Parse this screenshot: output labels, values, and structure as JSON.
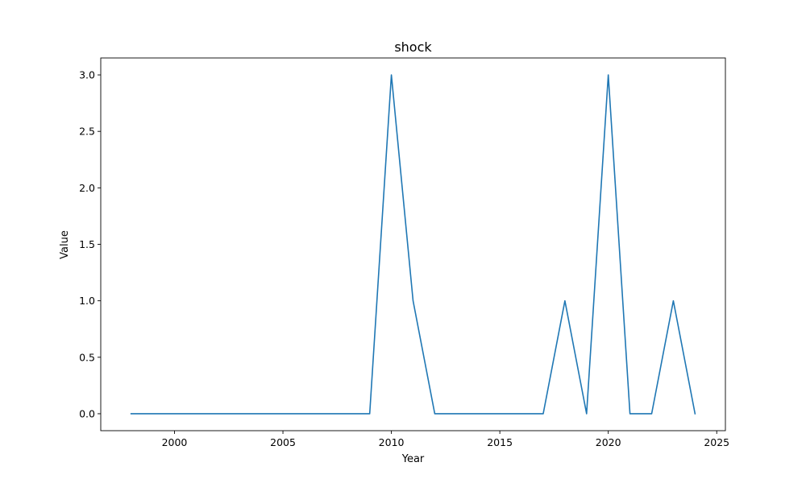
{
  "chart_data": {
    "type": "line",
    "title": "shock",
    "xlabel": "Year",
    "ylabel": "Value",
    "xlim": [
      1996.6,
      2025.4
    ],
    "ylim": [
      -0.15,
      3.15
    ],
    "xticks": [
      2000,
      2005,
      2010,
      2015,
      2020,
      2025
    ],
    "yticks": [
      0.0,
      0.5,
      1.0,
      1.5,
      2.0,
      2.5,
      3.0
    ],
    "xtick_labels": [
      "2000",
      "2005",
      "2010",
      "2015",
      "2020",
      "2025"
    ],
    "ytick_labels": [
      "0.0",
      "0.5",
      "1.0",
      "1.5",
      "2.0",
      "2.5",
      "3.0"
    ],
    "grid": false,
    "series": [
      {
        "color": "#1f77b4",
        "x": [
          1998,
          1999,
          2000,
          2001,
          2002,
          2003,
          2004,
          2005,
          2006,
          2007,
          2008,
          2009,
          2010,
          2011,
          2012,
          2013,
          2014,
          2015,
          2016,
          2017,
          2018,
          2019,
          2020,
          2021,
          2022,
          2023,
          2024
        ],
        "y": [
          0,
          0,
          0,
          0,
          0,
          0,
          0,
          0,
          0,
          0,
          0,
          0,
          3,
          1,
          0,
          0,
          0,
          0,
          0,
          0,
          1,
          0,
          3,
          0,
          0,
          1,
          0
        ]
      }
    ]
  }
}
